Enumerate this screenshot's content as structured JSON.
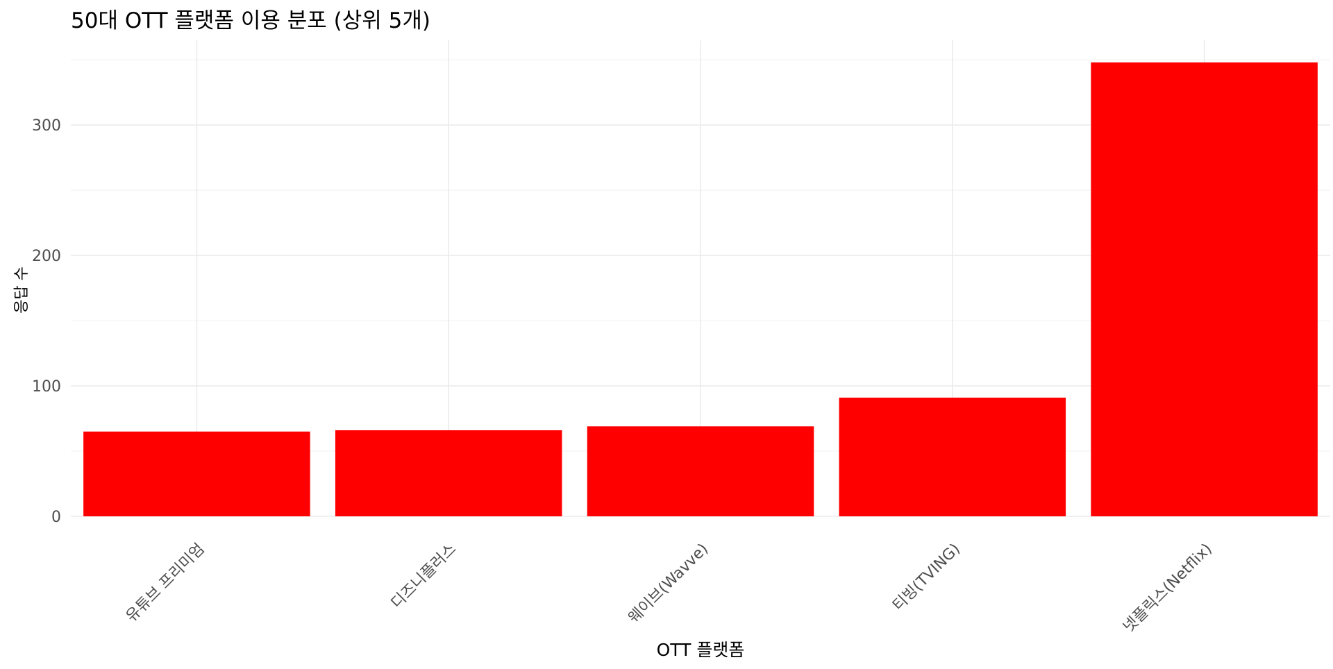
{
  "chart_data": {
    "type": "bar",
    "title": "50대 OTT 플랫폼 이용 분포 (상위 5개)",
    "xlabel": "OTT 플랫폼",
    "ylabel": "응답 수",
    "categories": [
      "유튜브 프리미엄",
      "디즈니플러스",
      "웨이브(Wavve)",
      "티빙(TVING)",
      "넷플릭스(Netflix)"
    ],
    "values": [
      65,
      66,
      69,
      91,
      348
    ],
    "ylim": [
      0,
      365
    ],
    "yticks": [
      0,
      100,
      200,
      300
    ],
    "ytick_labels": [
      "0",
      "100",
      "200",
      "300"
    ],
    "bar_color": "#FF0000",
    "grid": true,
    "x_tick_rotation": 45,
    "legend": "none"
  }
}
